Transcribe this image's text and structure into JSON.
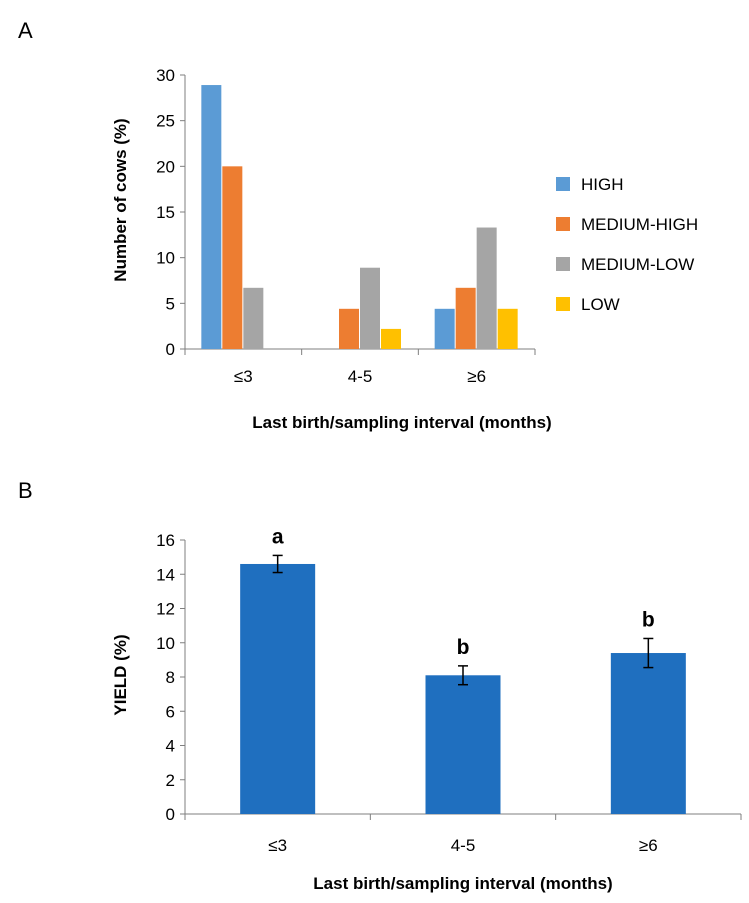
{
  "chart_data": [
    {
      "panel_label": "A",
      "type": "bar",
      "categories": [
        "≤3",
        "4-5",
        "≥6"
      ],
      "series": [
        {
          "name": "HIGH",
          "color": "#5B9BD5",
          "values": [
            28.9,
            0,
            4.4
          ]
        },
        {
          "name": "MEDIUM-HIGH",
          "color": "#ED7D31",
          "values": [
            20.0,
            4.4,
            6.7
          ]
        },
        {
          "name": "MEDIUM-LOW",
          "color": "#A5A5A5",
          "values": [
            6.7,
            8.9,
            13.3
          ]
        },
        {
          "name": "LOW",
          "color": "#FFC000",
          "values": [
            0,
            2.2,
            4.4
          ]
        }
      ],
      "title": "",
      "xlabel": "Last birth/sampling interval (months)",
      "ylabel": "Number of cows (%)",
      "ylim": [
        0,
        30
      ],
      "yticks": [
        "0",
        "5",
        "10",
        "15",
        "20",
        "25",
        "30"
      ],
      "legend": "right",
      "grid": false
    },
    {
      "panel_label": "B",
      "type": "bar",
      "categories": [
        "≤3",
        "4-5",
        "≥6"
      ],
      "values": [
        14.6,
        8.1,
        9.4
      ],
      "error": [
        0.5,
        0.55,
        0.85
      ],
      "significance_labels": [
        "a",
        "b",
        "b"
      ],
      "bar_color": "#1F6FBF",
      "title": "",
      "xlabel": "Last birth/sampling interval (months)",
      "ylabel": "YIELD (%)",
      "ylim": [
        0,
        16
      ],
      "yticks": [
        "0",
        "2",
        "4",
        "6",
        "8",
        "10",
        "12",
        "14",
        "16"
      ],
      "grid": false
    }
  ]
}
